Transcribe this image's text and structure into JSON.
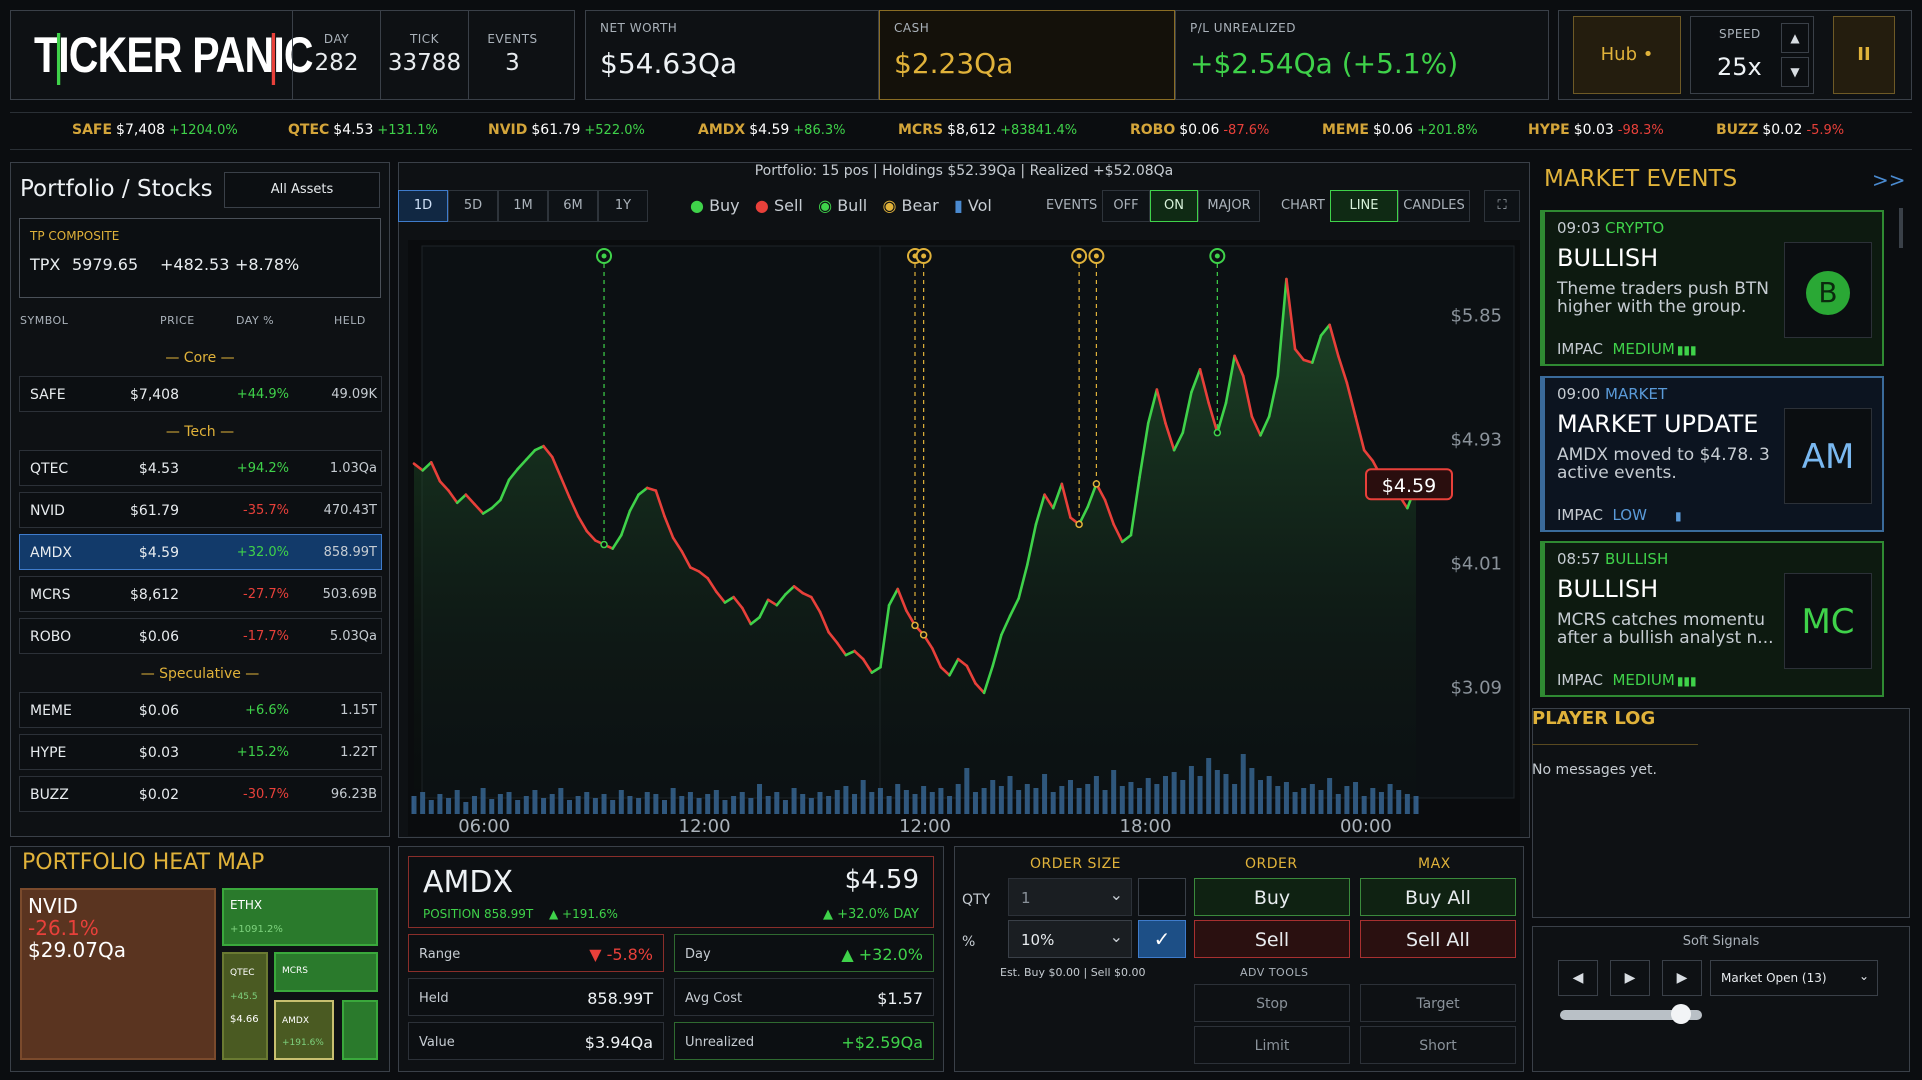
{
  "header": {
    "logo": [
      "T",
      "I",
      "CKER PAN",
      "I",
      "C"
    ],
    "day_label": "DAY",
    "day_value": "282",
    "tick_label": "TICK",
    "tick_value": "33788",
    "events_label": "EVENTS",
    "events_value": "3",
    "networth_label": "NET WORTH",
    "networth_value": "$54.63Qa",
    "cash_label": "CASH",
    "cash_value": "$2.23Qa",
    "pl_label": "P/L UNREALIZED",
    "pl_value": "+$2.54Qa (+5.1%)",
    "hub_label": "Hub •",
    "speed_label": "SPEED",
    "speed_value": "25x",
    "pause_glyph": "II"
  },
  "ticker": [
    {
      "sym": "SAFE",
      "price": "$7,408",
      "chg": "+1204.0%",
      "up": true
    },
    {
      "sym": "QTEC",
      "price": "$4.53",
      "chg": "+131.1%",
      "up": true
    },
    {
      "sym": "NVID",
      "price": "$61.79",
      "chg": "+522.0%",
      "up": true
    },
    {
      "sym": "AMDX",
      "price": "$4.59",
      "chg": "+86.3%",
      "up": true
    },
    {
      "sym": "MCRS",
      "price": "$8,612",
      "chg": "+83841.4%",
      "up": true
    },
    {
      "sym": "ROBO",
      "price": "$0.06",
      "chg": "-87.6%",
      "up": false
    },
    {
      "sym": "MEME",
      "price": "$0.06",
      "chg": "+201.8%",
      "up": true
    },
    {
      "sym": "HYPE",
      "price": "$0.03",
      "chg": "-98.3%",
      "up": false
    },
    {
      "sym": "BUZZ",
      "price": "$0.02",
      "chg": "-5.9%",
      "up": false
    }
  ],
  "portfolio": {
    "title": "Portfolio / Stocks",
    "filter": "All Assets",
    "composite_label": "TP COMPOSITE",
    "composite_sym": "TPX",
    "composite_value": "5979.65",
    "composite_chg": "+482.53",
    "composite_pct": "+8.78%",
    "cols": [
      "SYMBOL",
      "PRICE",
      "DAY %",
      "HELD"
    ],
    "groups": {
      "core": "— Core —",
      "tech": "— Tech —",
      "spec": "— Speculative —"
    },
    "rows": [
      {
        "sym": "SAFE",
        "price": "$7,408",
        "day": "+44.9%",
        "held": "49.09K",
        "up": true
      },
      {
        "sym": "QTEC",
        "price": "$4.53",
        "day": "+94.2%",
        "held": "1.03Qa",
        "up": true
      },
      {
        "sym": "NVID",
        "price": "$61.79",
        "day": "-35.7%",
        "held": "470.43T",
        "up": false
      },
      {
        "sym": "AMDX",
        "price": "$4.59",
        "day": "+32.0%",
        "held": "858.99T",
        "up": true
      },
      {
        "sym": "MCRS",
        "price": "$8,612",
        "day": "-27.7%",
        "held": "503.69B",
        "up": false
      },
      {
        "sym": "ROBO",
        "price": "$0.06",
        "day": "-17.7%",
        "held": "5.03Qa",
        "up": false
      },
      {
        "sym": "MEME",
        "price": "$0.06",
        "day": "+6.6%",
        "held": "1.15T",
        "up": true
      },
      {
        "sym": "HYPE",
        "price": "$0.03",
        "day": "+15.2%",
        "held": "1.22T",
        "up": true
      },
      {
        "sym": "BUZZ",
        "price": "$0.02",
        "day": "-30.7%",
        "held": "96.23B",
        "up": false
      }
    ]
  },
  "heatmap": {
    "title": "PORTFOLIO HEAT MAP",
    "nvid": {
      "sym": "NVID",
      "pct": "-26.1%",
      "val": "$29.07Qa"
    },
    "ethx": {
      "sym": "ETHX",
      "pct": "+1091.2%"
    },
    "qtec": {
      "sym": "QTEC",
      "pct": "+45.5",
      "val": "$4.66"
    },
    "mcrs": {
      "sym": "MCRS"
    },
    "amdx": {
      "sym": "AMDX",
      "pct": "+191.6%"
    }
  },
  "chart_panel": {
    "summary": "Portfolio: 15 pos | Holdings $52.39Qa | Realized +$52.08Qa",
    "ranges": [
      "1D",
      "5D",
      "1M",
      "6M",
      "1Y"
    ],
    "legend": [
      "Buy",
      "Sell",
      "Bull",
      "Bear",
      "Vol"
    ],
    "events_label": "EVENTS",
    "events_opts": [
      "OFF",
      "ON",
      "MAJOR"
    ],
    "chart_label": "CHART",
    "chart_opts": [
      "LINE",
      "CANDLES"
    ],
    "price_tag": "$4.59",
    "expand_glyph": "⛶"
  },
  "chart_data": {
    "type": "line",
    "x_ticks": [
      "06:00",
      "12:00",
      "12:00",
      "18:00",
      "00:00"
    ],
    "y_ticks": [
      "$5.85",
      "$4.93",
      "$4.01",
      "$3.09"
    ],
    "series": [
      {
        "values": [
          4.75,
          4.7,
          4.76,
          4.62,
          4.55,
          4.46,
          4.52,
          4.45,
          4.38,
          4.42,
          4.48,
          4.63,
          4.71,
          4.78,
          4.85,
          4.88,
          4.8,
          4.65,
          4.5,
          4.36,
          4.25,
          4.18,
          4.15,
          4.12,
          4.22,
          4.4,
          4.52,
          4.57,
          4.55,
          4.36,
          4.2,
          4.1,
          3.98,
          3.95,
          3.9,
          3.8,
          3.72,
          3.76,
          3.68,
          3.56,
          3.61,
          3.74,
          3.7,
          3.78,
          3.84,
          3.79,
          3.76,
          3.65,
          3.5,
          3.42,
          3.33,
          3.36,
          3.3,
          3.2,
          3.24,
          3.7,
          3.82,
          3.66,
          3.55,
          3.48,
          3.38,
          3.24,
          3.18,
          3.3,
          3.25,
          3.12,
          3.05,
          3.25,
          3.48,
          3.62,
          3.75,
          4.0,
          4.3,
          4.52,
          4.42,
          4.6,
          4.35,
          4.3,
          4.43,
          4.6,
          4.48,
          4.3,
          4.17,
          4.22,
          4.65,
          5.05,
          5.3,
          5.05,
          4.85,
          4.98,
          5.28,
          5.45,
          5.2,
          4.98,
          5.2,
          5.55,
          5.4,
          5.1,
          4.96,
          5.1,
          5.4,
          6.12,
          5.6,
          5.52,
          5.5,
          5.7,
          5.78,
          5.55,
          5.35,
          5.1,
          4.85,
          4.77,
          4.65,
          4.58,
          4.52,
          4.42,
          4.59
        ],
        "up": [
          true,
          false,
          true,
          false,
          false,
          false,
          true,
          false,
          false,
          true,
          true,
          true,
          true,
          true,
          true,
          true,
          false,
          false,
          false,
          false,
          false,
          false,
          false,
          false,
          true,
          true,
          true,
          true,
          false,
          false,
          false,
          false,
          false,
          false,
          false,
          false,
          false,
          true,
          false,
          false,
          true,
          true,
          false,
          true,
          true,
          false,
          false,
          false,
          false,
          false,
          false,
          true,
          false,
          false,
          true,
          true,
          true,
          false,
          false,
          false,
          false,
          false,
          false,
          true,
          false,
          false,
          false,
          true,
          true,
          true,
          true,
          true,
          true,
          true,
          false,
          true,
          false,
          false,
          true,
          true,
          false,
          false,
          false,
          true,
          true,
          true,
          true,
          false,
          false,
          true,
          true,
          true,
          false,
          false,
          true,
          true,
          false,
          false,
          false,
          true,
          true,
          true,
          false,
          false,
          false,
          true,
          true,
          false,
          false,
          false,
          false,
          false,
          false,
          false,
          false,
          false,
          true
        ]
      }
    ],
    "markers": [
      {
        "i": 22,
        "kind": "bull"
      },
      {
        "i": 58,
        "kind": "bear"
      },
      {
        "i": 59,
        "kind": "bear"
      },
      {
        "i": 77,
        "kind": "bear"
      },
      {
        "i": 79,
        "kind": "bear"
      },
      {
        "i": 93,
        "kind": "bull"
      }
    ],
    "volume": [
      18,
      22,
      14,
      20,
      16,
      24,
      12,
      18,
      26,
      15,
      20,
      22,
      14,
      18,
      24,
      16,
      20,
      26,
      14,
      18,
      22,
      16,
      20,
      14,
      24,
      18,
      16,
      22,
      20,
      14,
      26,
      18,
      22,
      16,
      20,
      24,
      14,
      18,
      22,
      16,
      30,
      18,
      22,
      14,
      26,
      20,
      16,
      22,
      18,
      24,
      28,
      20,
      34,
      22,
      26,
      18,
      30,
      24,
      20,
      28,
      22,
      26,
      18,
      30,
      46,
      22,
      26,
      34,
      28,
      38,
      24,
      30,
      26,
      40,
      22,
      28,
      34,
      26,
      30,
      38,
      24,
      44,
      28,
      32,
      26,
      36,
      30,
      38,
      42,
      34,
      48,
      38,
      56,
      44,
      40,
      30,
      60,
      46,
      34,
      38,
      28,
      32,
      22,
      26,
      30,
      24,
      36,
      20,
      28,
      32,
      18,
      26,
      22,
      30,
      24,
      20,
      18
    ],
    "price_tag": 4.59,
    "ylim": [
      2.7,
      6.35
    ]
  },
  "events": {
    "title": "MARKET EVENTS",
    "collapse_glyph": ">>",
    "items": [
      {
        "time": "09:03",
        "cat": "CRYPTO",
        "title": "BULLISH",
        "desc": "Theme traders push BTN higher with the group.",
        "impact_label": "IMPAC",
        "impact": "MEDIUM",
        "icon": "B",
        "tone": "green"
      },
      {
        "time": "09:00",
        "cat": "MARKET",
        "title": "MARKET UPDATE",
        "desc": "AMDX moved to $4.78. 3 active events.",
        "impact_label": "IMPAC",
        "impact": "LOW",
        "icon": "AM",
        "tone": "blue"
      },
      {
        "time": "08:57",
        "cat": "BULLISH",
        "title": "BULLISH",
        "desc": "MCRS catches momentu after a bullish analyst n...",
        "impact_label": "IMPAC",
        "impact": "MEDIUM",
        "icon": "MC",
        "tone": "green"
      }
    ]
  },
  "player_log": {
    "title": "PLAYER LOG",
    "empty": "No messages yet."
  },
  "soft_signals": {
    "title": "Soft Signals",
    "select": "Market Open (13)",
    "slider_value": 0.85
  },
  "detail": {
    "sym": "AMDX",
    "price": "$4.59",
    "position": "POSITION 858.99T",
    "position_chg": "▲ +191.6%",
    "day_chg": "▲ +32.0% DAY",
    "range_label": "Range",
    "range_value": "▼ -5.8%",
    "day_label": "Day",
    "day_value": "▲ +32.0%",
    "held_label": "Held",
    "held_value": "858.99T",
    "avg_label": "Avg Cost",
    "avg_value": "$1.57",
    "value_label": "Value",
    "value_value": "$3.94Qa",
    "unreal_label": "Unrealized",
    "unreal_value": "+$2.59Qa"
  },
  "order": {
    "size_label": "ORDER SIZE",
    "order_label": "ORDER",
    "max_label": "MAX",
    "qty_label": "QTY",
    "qty_value": "1",
    "pct_label": "%",
    "pct_value": "10%",
    "est": "Est. Buy $0.00 | Sell $0.00",
    "buy": "Buy",
    "sell": "Sell",
    "buy_all": "Buy All",
    "sell_all": "Sell All",
    "adv_label": "ADV TOOLS",
    "stop": "Stop",
    "target": "Target",
    "limit": "Limit",
    "short": "Short"
  },
  "colors": {
    "up": "#3fd24a",
    "down": "#e8403a",
    "gold": "#e0b23a",
    "blue": "#3f7ccc"
  }
}
